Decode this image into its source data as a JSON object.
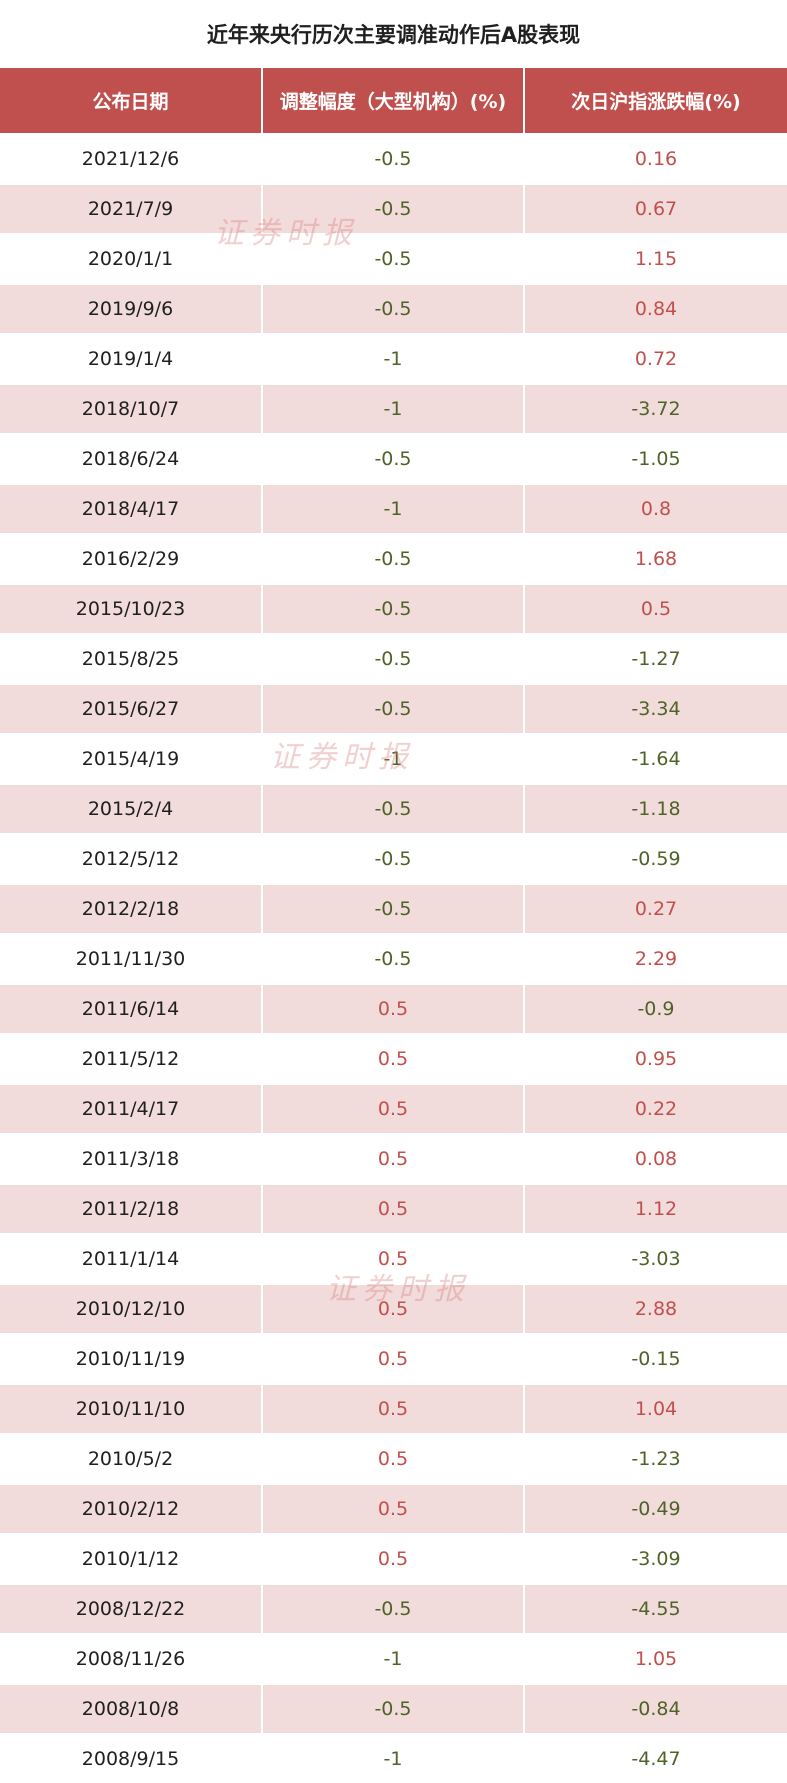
{
  "chart_data": {
    "type": "table",
    "title": "近年来央行历次主要调准动作后A股表现",
    "columns": [
      "公布日期",
      "调整幅度（大型机构）(%)",
      "次日沪指涨跌幅(%)"
    ],
    "rows": [
      [
        "2021/12/6",
        "-0.5",
        "0.16"
      ],
      [
        "2021/7/9",
        "-0.5",
        "0.67"
      ],
      [
        "2020/1/1",
        "-0.5",
        "1.15"
      ],
      [
        "2019/9/6",
        "-0.5",
        "0.84"
      ],
      [
        "2019/1/4",
        "-1",
        "0.72"
      ],
      [
        "2018/10/7",
        "-1",
        "-3.72"
      ],
      [
        "2018/6/24",
        "-0.5",
        "-1.05"
      ],
      [
        "2018/4/17",
        "-1",
        "0.8"
      ],
      [
        "2016/2/29",
        "-0.5",
        "1.68"
      ],
      [
        "2015/10/23",
        "-0.5",
        "0.5"
      ],
      [
        "2015/8/25",
        "-0.5",
        "-1.27"
      ],
      [
        "2015/6/27",
        "-0.5",
        "-3.34"
      ],
      [
        "2015/4/19",
        "-1",
        "-1.64"
      ],
      [
        "2015/2/4",
        "-0.5",
        "-1.18"
      ],
      [
        "2012/5/12",
        "-0.5",
        "-0.59"
      ],
      [
        "2012/2/18",
        "-0.5",
        "0.27"
      ],
      [
        "2011/11/30",
        "-0.5",
        "2.29"
      ],
      [
        "2011/6/14",
        "0.5",
        "-0.9"
      ],
      [
        "2011/5/12",
        "0.5",
        "0.95"
      ],
      [
        "2011/4/17",
        "0.5",
        "0.22"
      ],
      [
        "2011/3/18",
        "0.5",
        "0.08"
      ],
      [
        "2011/2/18",
        "0.5",
        "1.12"
      ],
      [
        "2011/1/14",
        "0.5",
        "-3.03"
      ],
      [
        "2010/12/10",
        "0.5",
        "2.88"
      ],
      [
        "2010/11/19",
        "0.5",
        "-0.15"
      ],
      [
        "2010/11/10",
        "0.5",
        "1.04"
      ],
      [
        "2010/5/2",
        "0.5",
        "-1.23"
      ],
      [
        "2010/2/12",
        "0.5",
        "-0.49"
      ],
      [
        "2010/1/12",
        "0.5",
        "-3.09"
      ],
      [
        "2008/12/22",
        "-0.5",
        "-4.55"
      ],
      [
        "2008/11/26",
        "-1",
        "1.05"
      ],
      [
        "2008/10/8",
        "-0.5",
        "-0.84"
      ],
      [
        "2008/9/15",
        "-1",
        "-4.47"
      ]
    ],
    "colors": {
      "header_bg": "#c0504d",
      "stripe": "#f2dcdb",
      "positive": "#c0504d",
      "negative": "#4f6228"
    }
  },
  "watermark": "证券时报"
}
